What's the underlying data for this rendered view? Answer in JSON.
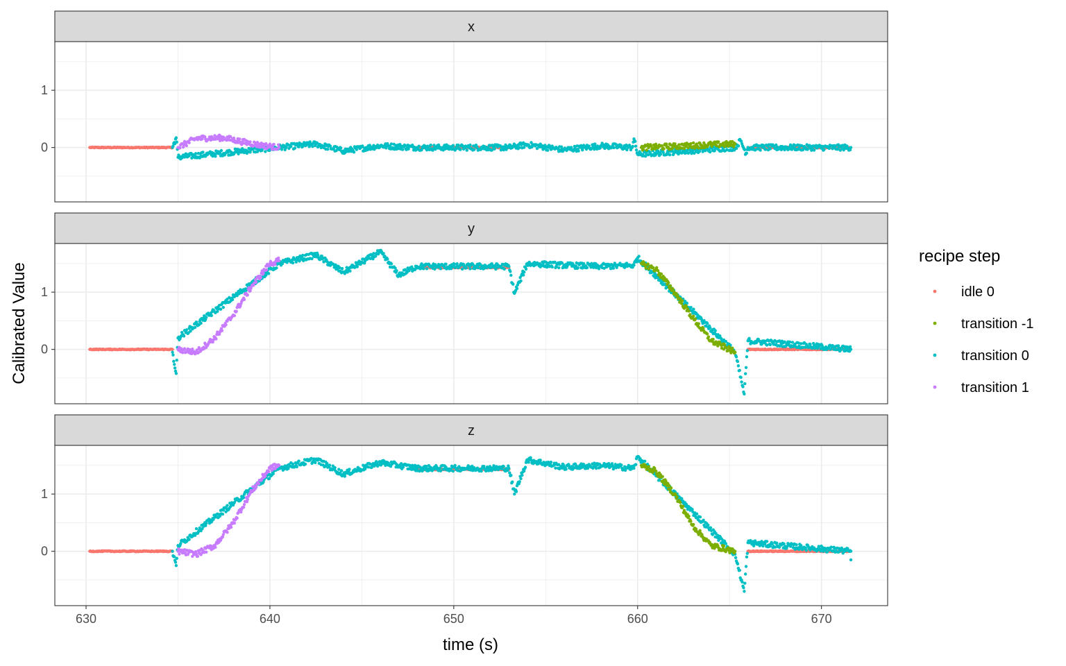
{
  "chart_data": {
    "type": "scatter",
    "xlabel": "time (s)",
    "ylabel": "Calibrated Value",
    "xlim": [
      628.3,
      673.6
    ],
    "ylim": [
      -0.95,
      1.85
    ],
    "x_ticks": [
      630,
      640,
      650,
      660,
      670
    ],
    "y_ticks": [
      0,
      1
    ],
    "grid": true,
    "legend": {
      "title": "recipe step",
      "position": "right",
      "entries": [
        {
          "label": "idle 0",
          "color": "#F8766D"
        },
        {
          "label": "transition -1",
          "color": "#7CAE00"
        },
        {
          "label": "transition 0",
          "color": "#00BFC4"
        },
        {
          "label": "transition 1",
          "color": "#C77CFF"
        }
      ]
    },
    "facets": [
      {
        "label": "x",
        "series": [
          {
            "name": "idle 0",
            "points": [
              [
                630.2,
                0.0
              ],
              [
                632.5,
                0.0
              ],
              [
                634.7,
                0.0
              ],
              [
                648.0,
                0.0
              ],
              [
                650.5,
                0.0
              ],
              [
                653.0,
                0.0
              ],
              [
                666.0,
                0.0
              ],
              [
                669.0,
                0.0
              ],
              [
                671.5,
                0.0
              ]
            ]
          },
          {
            "name": "transition 0",
            "points": [
              [
                634.7,
                0.0
              ],
              [
                634.9,
                0.17
              ],
              [
                635.0,
                -0.17
              ],
              [
                640.5,
                0.0
              ],
              [
                642.5,
                0.06
              ],
              [
                644.0,
                -0.06
              ],
              [
                646.0,
                0.03
              ],
              [
                648.0,
                0.0
              ],
              [
                653.0,
                0.0
              ],
              [
                654.0,
                0.05
              ],
              [
                656.0,
                -0.04
              ],
              [
                658.0,
                0.03
              ],
              [
                659.7,
                0.0
              ],
              [
                659.8,
                0.15
              ],
              [
                660.0,
                -0.12
              ],
              [
                665.3,
                0.0
              ],
              [
                665.6,
                0.12
              ],
              [
                665.9,
                -0.1
              ],
              [
                666.0,
                0.0
              ],
              [
                671.6,
                0.0
              ]
            ]
          },
          {
            "name": "transition 1",
            "points": [
              [
                635.0,
                0.0
              ],
              [
                636.0,
                0.16
              ],
              [
                637.5,
                0.17
              ],
              [
                638.5,
                0.1
              ],
              [
                639.5,
                0.04
              ],
              [
                640.5,
                0.0
              ]
            ]
          },
          {
            "name": "transition -1",
            "points": [
              [
                660.2,
                0.0
              ],
              [
                662.0,
                0.02
              ],
              [
                664.0,
                0.05
              ],
              [
                665.3,
                0.06
              ]
            ]
          }
        ]
      },
      {
        "label": "y",
        "series": [
          {
            "name": "idle 0",
            "points": [
              [
                630.2,
                0.0
              ],
              [
                632.5,
                0.0
              ],
              [
                634.7,
                0.0
              ],
              [
                648.0,
                1.43
              ],
              [
                650.5,
                1.43
              ],
              [
                653.0,
                1.43
              ],
              [
                666.0,
                0.0
              ],
              [
                669.0,
                0.0
              ],
              [
                671.5,
                0.0
              ]
            ]
          },
          {
            "name": "transition 0",
            "points": [
              [
                634.7,
                -0.05
              ],
              [
                634.9,
                -0.42
              ],
              [
                635.0,
                0.2
              ],
              [
                640.5,
                1.5
              ],
              [
                642.5,
                1.65
              ],
              [
                644.0,
                1.35
              ],
              [
                646.0,
                1.7
              ],
              [
                647.0,
                1.3
              ],
              [
                648.0,
                1.45
              ],
              [
                653.0,
                1.45
              ],
              [
                653.3,
                0.98
              ],
              [
                654.0,
                1.5
              ],
              [
                656.0,
                1.47
              ],
              [
                658.0,
                1.45
              ],
              [
                659.8,
                1.47
              ],
              [
                660.0,
                1.6
              ],
              [
                665.3,
                -0.05
              ],
              [
                665.8,
                -0.78
              ],
              [
                666.0,
                0.15
              ],
              [
                671.6,
                0.0
              ]
            ]
          },
          {
            "name": "transition 1",
            "points": [
              [
                635.0,
                0.0
              ],
              [
                636.0,
                -0.05
              ],
              [
                637.0,
                0.2
              ],
              [
                638.0,
                0.6
              ],
              [
                639.0,
                1.1
              ],
              [
                640.0,
                1.5
              ],
              [
                640.5,
                1.55
              ]
            ]
          },
          {
            "name": "transition -1",
            "points": [
              [
                660.2,
                1.5
              ],
              [
                661.0,
                1.4
              ],
              [
                662.0,
                1.0
              ],
              [
                663.0,
                0.55
              ],
              [
                664.0,
                0.15
              ],
              [
                665.3,
                -0.05
              ]
            ]
          }
        ]
      },
      {
        "label": "z",
        "series": [
          {
            "name": "idle 0",
            "points": [
              [
                630.2,
                0.0
              ],
              [
                632.5,
                0.0
              ],
              [
                634.7,
                0.0
              ],
              [
                648.0,
                1.43
              ],
              [
                650.5,
                1.43
              ],
              [
                653.0,
                1.43
              ],
              [
                666.0,
                0.0
              ],
              [
                669.0,
                0.0
              ],
              [
                671.5,
                0.0
              ]
            ]
          },
          {
            "name": "transition 0",
            "points": [
              [
                634.7,
                0.0
              ],
              [
                634.9,
                -0.25
              ],
              [
                635.0,
                0.1
              ],
              [
                640.5,
                1.45
              ],
              [
                642.5,
                1.6
              ],
              [
                644.0,
                1.35
              ],
              [
                646.0,
                1.55
              ],
              [
                648.0,
                1.45
              ],
              [
                653.0,
                1.45
              ],
              [
                653.3,
                1.0
              ],
              [
                654.0,
                1.6
              ],
              [
                656.0,
                1.47
              ],
              [
                658.0,
                1.5
              ],
              [
                659.8,
                1.45
              ],
              [
                660.0,
                1.65
              ],
              [
                665.3,
                -0.05
              ],
              [
                665.8,
                -0.7
              ],
              [
                666.0,
                0.15
              ],
              [
                671.6,
                0.0
              ],
              [
                671.6,
                -0.15
              ]
            ]
          },
          {
            "name": "transition 1",
            "points": [
              [
                635.0,
                0.0
              ],
              [
                636.0,
                -0.05
              ],
              [
                637.0,
                0.1
              ],
              [
                638.0,
                0.5
              ],
              [
                639.0,
                1.05
              ],
              [
                640.0,
                1.45
              ],
              [
                640.5,
                1.5
              ]
            ]
          },
          {
            "name": "transition -1",
            "points": [
              [
                660.2,
                1.5
              ],
              [
                661.0,
                1.4
              ],
              [
                662.0,
                1.0
              ],
              [
                663.0,
                0.45
              ],
              [
                664.0,
                0.1
              ],
              [
                665.3,
                0.0
              ]
            ]
          }
        ]
      }
    ]
  }
}
